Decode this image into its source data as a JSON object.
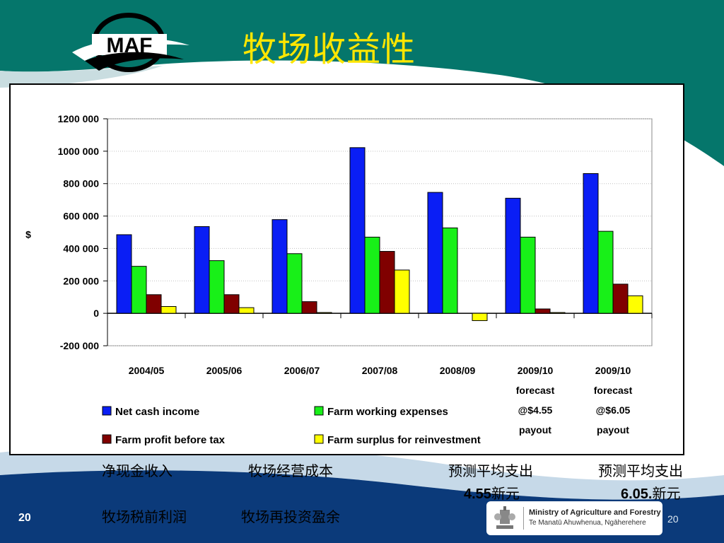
{
  "slide": {
    "title": "牧场收益性",
    "logo_text": "MAF",
    "page_number_left": "20",
    "page_number_right": "20",
    "ministry_name": "Ministry of Agriculture and Forestry",
    "ministry_subtitle": "Te Manatū Ahuwhenua, Ngāherehere"
  },
  "colors": {
    "teal": "#05766b",
    "navy": "#0b3a7a",
    "title_yellow": "#ffe600"
  },
  "chart_data": {
    "type": "bar",
    "ylabel": "$",
    "ylim": [
      -200000,
      1200000
    ],
    "yticks": [
      -200000,
      0,
      200000,
      400000,
      600000,
      800000,
      1000000,
      1200000
    ],
    "ytick_labels": [
      "-200 000",
      "0",
      "200 000",
      "400 000",
      "600 000",
      "800 000",
      "1000 000",
      "1200 000"
    ],
    "grid": true,
    "legend_position": "bottom",
    "categories": [
      [
        "2004/05"
      ],
      [
        "2005/06"
      ],
      [
        "2006/07"
      ],
      [
        "2007/08"
      ],
      [
        "2008/09"
      ],
      [
        "2009/10",
        "forecast",
        "@$4.55",
        "payout"
      ],
      [
        "2009/10",
        "forecast",
        "@$6.05",
        "payout"
      ]
    ],
    "series": [
      {
        "name": "Net cash income",
        "color": "#0a1ef5",
        "values": [
          485000,
          535000,
          578000,
          1022000,
          746000,
          710000,
          862000
        ]
      },
      {
        "name": "Farm working expenses",
        "color": "#18f018",
        "values": [
          290000,
          325000,
          368000,
          470000,
          527000,
          470000,
          506000
        ]
      },
      {
        "name": "Farm profit before tax",
        "color": "#800000",
        "values": [
          115000,
          115000,
          72000,
          382000,
          0,
          27000,
          180000
        ]
      },
      {
        "name": "Farm surplus for reinvestment",
        "color": "#ffff00",
        "values": [
          42000,
          35000,
          5000,
          267000,
          -45000,
          5000,
          108000
        ]
      }
    ]
  },
  "annotations": {
    "net_cash_income_cn": "净现金收入",
    "farm_working_expenses_cn": "牧场经营成本",
    "forecast_1_cn": "预测平均支出",
    "forecast_1_value": "4.55",
    "forecast_1_unit": "新元",
    "forecast_2_cn": "预测平均支出",
    "forecast_2_value": "6.05.",
    "forecast_2_unit": "新元",
    "farm_profit_cn": "牧场税前利润",
    "farm_surplus_cn": "牧场再投资盈余"
  }
}
